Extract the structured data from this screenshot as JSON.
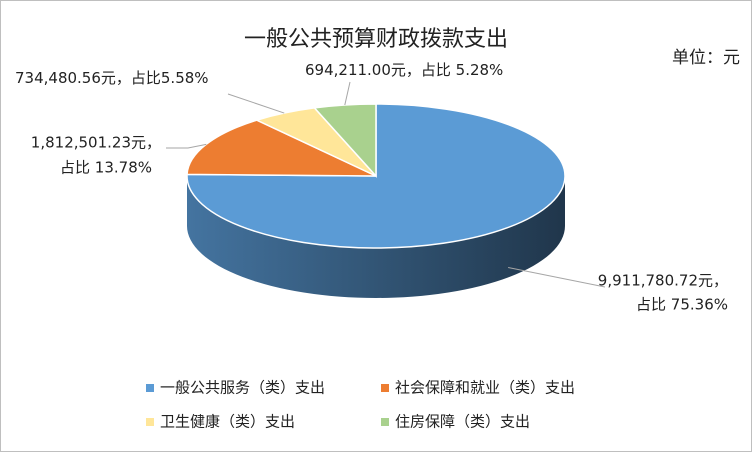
{
  "chart_data": {
    "type": "pie3d",
    "title": "一般公共预算财政拨款支出",
    "subtitle": "单位：元",
    "categories": [
      "一般公共服务（类）支出",
      "社会保障和就业（类）支出",
      "卫生健康（类）支出",
      "住房保障（类）支出"
    ],
    "values": [
      9911780.72,
      1812501.23,
      734480.56,
      694211.0
    ],
    "value_labels": [
      "9,911,780.72元，",
      "1,812,501.23元，",
      "734,480.56元，",
      "694,211.00元，"
    ],
    "percents": [
      75.36,
      13.78,
      5.58,
      5.28
    ],
    "percent_labels": [
      "占比 75.36%",
      "占比 13.78%",
      "占比5.58%",
      "占比 5.28%"
    ],
    "colors": [
      "#5b9bd5",
      "#ed7d31",
      "#ffe699",
      "#a9d18e"
    ],
    "legend": "bottom"
  }
}
